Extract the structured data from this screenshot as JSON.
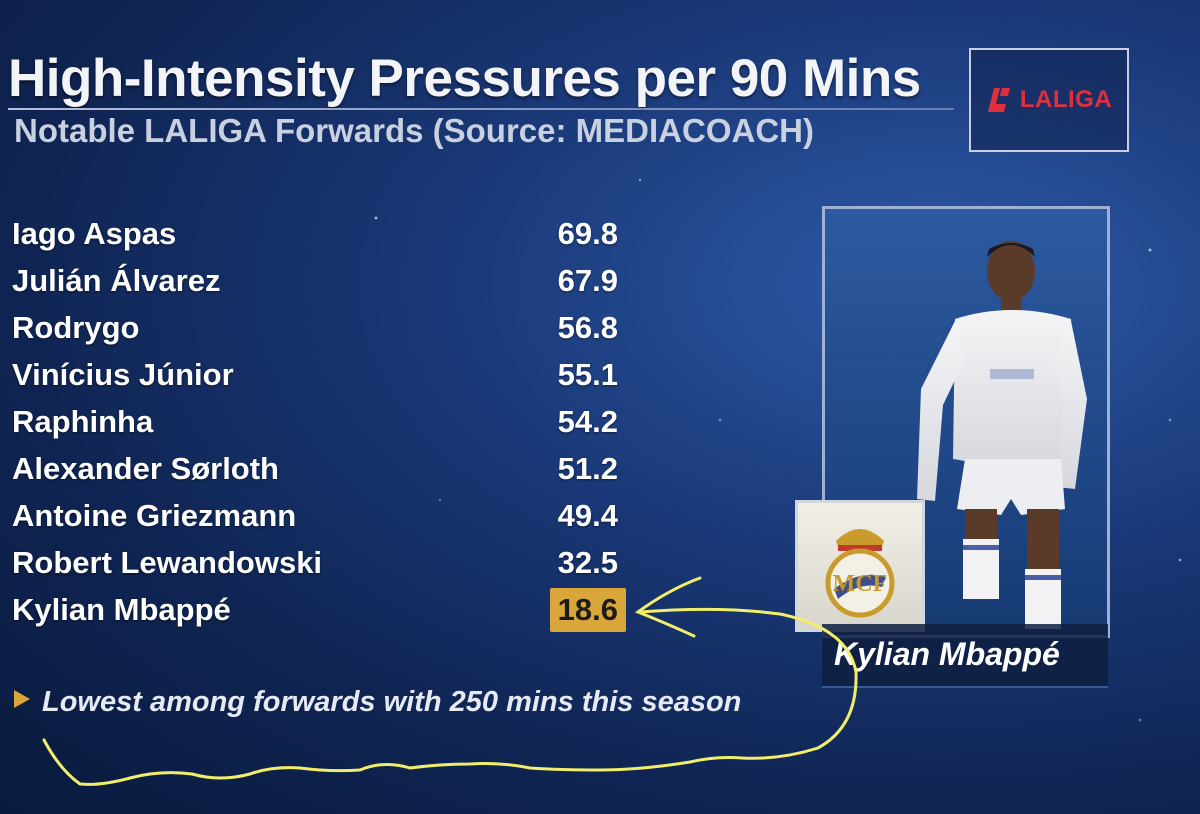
{
  "header": {
    "title": "High-Intensity Pressures per 90 Mins",
    "subtitle": "Notable LALIGA Forwards (Source: MEDIACOACH)",
    "logo_text": "LALIGA"
  },
  "chart_data": {
    "type": "table",
    "title": "High-Intensity Pressures per 90 Mins",
    "subtitle": "Notable LALIGA Forwards (Source: MEDIACOACH)",
    "categories": [
      "Iago Aspas",
      "Julián Álvarez",
      "Rodrygo",
      "Vinícius Júnior",
      "Raphinha",
      "Alexander Sørloth",
      "Antoine Griezmann",
      "Robert Lewandowski",
      "Kylian Mbappé"
    ],
    "values": [
      69.8,
      67.9,
      56.8,
      55.1,
      54.2,
      51.2,
      49.4,
      32.5,
      18.6
    ],
    "value_labels": [
      "69.8",
      "67.9",
      "56.8",
      "55.1",
      "54.2",
      "51.2",
      "49.4",
      "32.5",
      "18.6"
    ],
    "highlight": "Kylian Mbappé",
    "highlight_color": "#d9a63a",
    "annotation": "Lowest among forwards with 250 mins this season"
  },
  "side_panel": {
    "player_caption": "Kylian Mbappé",
    "photo_icon": "player-photo-icon",
    "crest_icon": "real-madrid-crest-icon"
  },
  "colors": {
    "background": "#1b3a7a",
    "highlight": "#d9a63a",
    "logo_red": "#e0303e",
    "scribble": "#f0ee6a"
  }
}
